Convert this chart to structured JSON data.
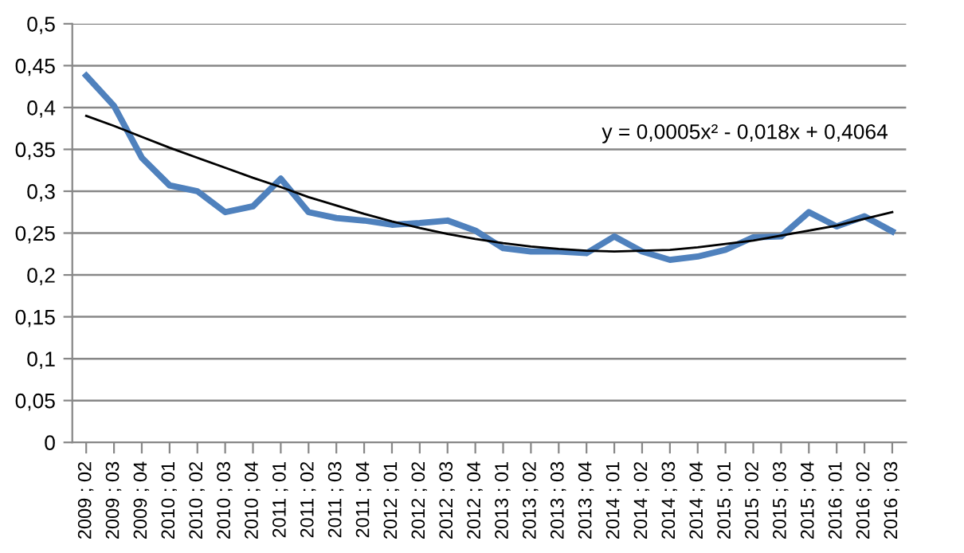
{
  "chart_data": {
    "type": "line",
    "categories": [
      "2009 ; 02",
      "2009 ; 03",
      "2009 ; 04",
      "2010 ; 01",
      "2010 ; 02",
      "2010 ; 03",
      "2010 ; 04",
      "2011 ; 01",
      "2011 ; 02",
      "2011 ; 03",
      "2011 ; 04",
      "2012 ; 01",
      "2012 ; 02",
      "2012 ; 03",
      "2012 ; 04",
      "2013 ; 01",
      "2013 ; 02",
      "2013 ; 03",
      "2013 ; 04",
      "2014 ; 01",
      "2014 ; 02",
      "2014 ; 03",
      "2014 ; 04",
      "2015 ; 01",
      "2015 ; 02",
      "2015 ; 03",
      "2015 ; 04",
      "2016 ; 01",
      "2016 ; 02",
      "2016 ; 03"
    ],
    "series": [
      {
        "color": "#4f81bd",
        "values": [
          0.438,
          0.402,
          0.34,
          0.307,
          0.3,
          0.275,
          0.282,
          0.315,
          0.275,
          0.268,
          0.265,
          0.26,
          0.262,
          0.265,
          0.253,
          0.232,
          0.228,
          0.228,
          0.226,
          0.246,
          0.228,
          0.218,
          0.222,
          0.23,
          0.245,
          0.246,
          0.275,
          0.258,
          0.27,
          0.252
        ]
      },
      {
        "color": "#000000",
        "values": [
          0.39,
          0.378,
          0.365,
          0.352,
          0.34,
          0.328,
          0.316,
          0.305,
          0.293,
          0.283,
          0.273,
          0.264,
          0.256,
          0.249,
          0.243,
          0.238,
          0.234,
          0.231,
          0.229,
          0.228,
          0.229,
          0.23,
          0.233,
          0.237,
          0.241,
          0.247,
          0.253,
          0.259,
          0.267,
          0.275
        ]
      }
    ],
    "ylim": [
      0,
      0.5
    ],
    "yticks": [
      0,
      {
        "value": 0.05,
        "label": "0,05"
      },
      {
        "value": 0.1,
        "label": "0,1"
      },
      {
        "value": 0.15,
        "label": "0,15"
      },
      {
        "value": 0.2,
        "label": "0,2"
      },
      {
        "value": 0.25,
        "label": "0,25"
      },
      {
        "value": 0.3,
        "label": "0,3"
      },
      {
        "value": 0.35,
        "label": "0,35"
      },
      {
        "value": 0.4,
        "label": "0,4"
      },
      {
        "value": 0.45,
        "label": "0,45"
      },
      {
        "value": 0.5,
        "label": "0,5"
      }
    ],
    "grid": "y",
    "marker": "none",
    "annotations": [
      "y = 0,0005x² - 0,018x + 0,4064"
    ]
  }
}
